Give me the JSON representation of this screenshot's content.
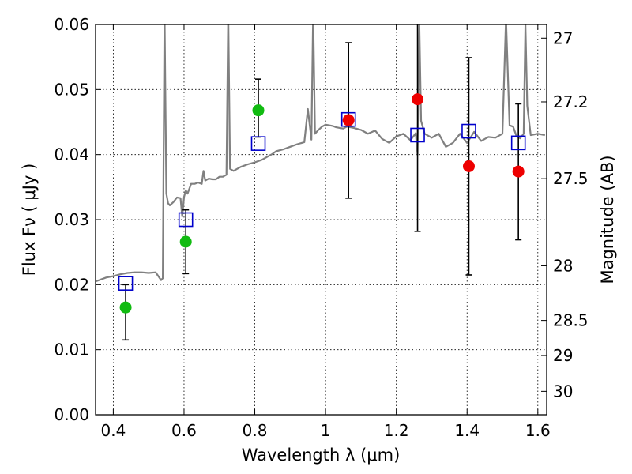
{
  "chart_data": {
    "type": "scatter",
    "xlabel": "Wavelength  λ (μm)",
    "ylabel": "Flux  Fν  ( μJy )",
    "y2label": "Magnitude (AB)",
    "xlim": [
      0.35,
      1.625
    ],
    "ylim": [
      0,
      0.06
    ],
    "grid": true,
    "x_ticks": [
      {
        "value": 0.4,
        "label": "0.4"
      },
      {
        "value": 0.6,
        "label": "0.6"
      },
      {
        "value": 0.8,
        "label": "0.8"
      },
      {
        "value": 1.0,
        "label": "1"
      },
      {
        "value": 1.2,
        "label": "1.2"
      },
      {
        "value": 1.4,
        "label": "1.4"
      },
      {
        "value": 1.6,
        "label": "1.6"
      }
    ],
    "y_ticks": [
      {
        "value": 0.0,
        "label": "0.00"
      },
      {
        "value": 0.01,
        "label": "0.01"
      },
      {
        "value": 0.02,
        "label": "0.02"
      },
      {
        "value": 0.03,
        "label": "0.03"
      },
      {
        "value": 0.04,
        "label": "0.04"
      },
      {
        "value": 0.05,
        "label": "0.05"
      },
      {
        "value": 0.06,
        "label": "0.06"
      }
    ],
    "y2_ticks": [
      {
        "flux": 0.0579,
        "label": "27"
      },
      {
        "flux": 0.0481,
        "label": "27.2"
      },
      {
        "flux": 0.0363,
        "label": "27.5"
      },
      {
        "flux": 0.0229,
        "label": "28"
      },
      {
        "flux": 0.0145,
        "label": "28.5"
      },
      {
        "flux": 0.0091,
        "label": "29"
      },
      {
        "flux": 0.0036,
        "label": "30"
      }
    ],
    "colors": {
      "model": "#808080",
      "green": "#11bb11",
      "red": "#ee0000",
      "model_points": "#0000cc",
      "errorbar": "#000000"
    },
    "series": [
      {
        "kind": "line",
        "color": "#808080",
        "x": [
          0.35,
          0.36,
          0.38,
          0.4,
          0.42,
          0.44,
          0.46,
          0.48,
          0.5,
          0.52,
          0.535,
          0.54,
          0.545,
          0.55,
          0.555,
          0.56,
          0.57,
          0.58,
          0.59,
          0.595,
          0.6,
          0.605,
          0.61,
          0.62,
          0.63,
          0.64,
          0.65,
          0.655,
          0.66,
          0.67,
          0.68,
          0.69,
          0.7,
          0.71,
          0.72,
          0.725,
          0.73,
          0.74,
          0.75,
          0.76,
          0.78,
          0.8,
          0.82,
          0.84,
          0.85,
          0.86,
          0.88,
          0.9,
          0.92,
          0.94,
          0.95,
          0.96,
          0.965,
          0.97,
          0.98,
          0.99,
          1.0,
          1.01,
          1.02,
          1.03,
          1.04,
          1.05,
          1.06,
          1.07,
          1.08,
          1.1,
          1.12,
          1.14,
          1.16,
          1.18,
          1.2,
          1.22,
          1.24,
          1.255,
          1.26,
          1.265,
          1.27,
          1.28,
          1.3,
          1.32,
          1.34,
          1.36,
          1.38,
          1.4,
          1.42,
          1.44,
          1.46,
          1.48,
          1.5,
          1.51,
          1.52,
          1.53,
          1.54,
          1.55,
          1.56,
          1.565,
          1.57,
          1.58,
          1.6,
          1.62
        ],
        "y": [
          0.0205,
          0.0207,
          0.0211,
          0.0213,
          0.0216,
          0.0218,
          0.0219,
          0.0219,
          0.0218,
          0.0219,
          0.0207,
          0.021,
          0.062,
          0.034,
          0.0325,
          0.0322,
          0.0327,
          0.0334,
          0.0333,
          0.0305,
          0.0335,
          0.0345,
          0.034,
          0.0355,
          0.0355,
          0.0357,
          0.0355,
          0.0375,
          0.036,
          0.0363,
          0.0362,
          0.0362,
          0.0366,
          0.0366,
          0.0369,
          0.062,
          0.0378,
          0.0375,
          0.0378,
          0.0381,
          0.0385,
          0.0388,
          0.0392,
          0.0398,
          0.0401,
          0.0405,
          0.0408,
          0.0412,
          0.0416,
          0.0419,
          0.047,
          0.0423,
          0.062,
          0.0432,
          0.0438,
          0.0443,
          0.0446,
          0.0445,
          0.0444,
          0.0442,
          0.0441,
          0.044,
          0.0443,
          0.0442,
          0.0441,
          0.0438,
          0.0432,
          0.0437,
          0.0424,
          0.0418,
          0.0428,
          0.0432,
          0.0422,
          0.0433,
          0.04,
          0.06,
          0.0452,
          0.0432,
          0.0426,
          0.0432,
          0.0412,
          0.0418,
          0.0432,
          0.0418,
          0.0435,
          0.0421,
          0.0427,
          0.0426,
          0.0432,
          0.061,
          0.0445,
          0.0443,
          0.0428,
          0.0425,
          0.0432,
          0.06,
          0.0475,
          0.043,
          0.0432,
          0.043
        ]
      },
      {
        "kind": "scatter",
        "marker": "circle",
        "color": "#11bb11",
        "x": [
          0.435,
          0.605,
          0.81
        ],
        "y": [
          0.0165,
          0.0266,
          0.0468
        ]
      },
      {
        "kind": "scatter",
        "marker": "circle",
        "color": "#ee0000",
        "x": [
          1.065,
          1.26,
          1.405,
          1.545
        ],
        "y": [
          0.0453,
          0.0485,
          0.0382,
          0.0374
        ]
      },
      {
        "kind": "scatter",
        "marker": "open-square",
        "color": "#0000cc",
        "x": [
          0.435,
          0.605,
          0.81,
          1.065,
          1.26,
          1.405,
          1.545
        ],
        "y": [
          0.0202,
          0.03,
          0.0417,
          0.0454,
          0.043,
          0.0436,
          0.0418
        ]
      },
      {
        "kind": "errorbar",
        "color": "#000000",
        "x": [
          0.435,
          0.605,
          0.81,
          1.065,
          1.26,
          1.405,
          1.545
        ],
        "y_low": [
          0.0115,
          0.0217,
          0.0427,
          0.0333,
          0.0282,
          0.0215,
          0.0269
        ],
        "y_high": [
          0.02,
          0.0315,
          0.0516,
          0.0572,
          0.0615,
          0.0549,
          0.0478
        ]
      }
    ]
  }
}
